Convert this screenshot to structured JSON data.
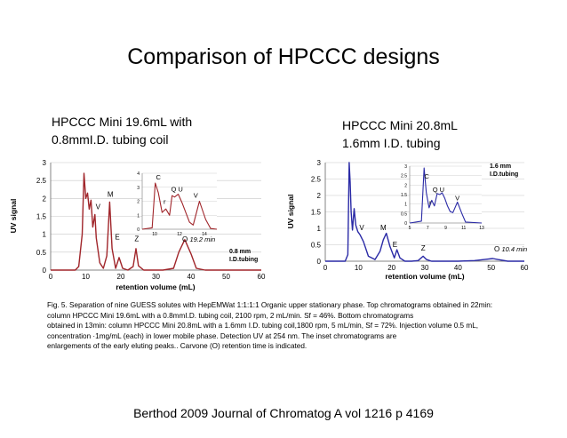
{
  "slide": {
    "title": "Comparison of HPCCC designs",
    "left_subtitle_line1": "HPCCC Mini 19.6mL with",
    "left_subtitle_line2": "0.8mmI.D. tubing coil",
    "right_subtitle_line1": "HPCCC Mini 20.8mL",
    "right_subtitle_line2": "1.6mm I.D. tubing",
    "caption_lines": [
      "Fig. 5. Separation of nine GUESS solutes with HepEMWat 1:1:1:1 Organic upper stationary phase. Top chromatograms obtained in 22min:",
      "column HPCCC Mini 19.6mL with a 0.8mmI.D. tubing coil, 2100 rpm, 2 mL/min. Sf = 46%. Bottom chromatograms",
      "obtained in 13min: column HPCCC Mini 20.8mL with a 1.6mm I.D. tubing coil,1800 rpm, 5 mL/min, Sf = 72%. Injection volume 0.5 mL,",
      "concentration ·1mg/mL (each) in lower mobile phase. Detection UV at 254 nm. The inset chromatograms are",
      "enlargements of the early eluting peaks.. Carvone (O) retention time is indicated."
    ],
    "citation": "Berthod 2009 Journal of Chromatog A vol 1216 p 4169"
  },
  "chart_data": [
    {
      "type": "line",
      "xlabel": "retention volume (mL)",
      "ylabel": "UV signal",
      "xlim": [
        0,
        60
      ],
      "ylim": [
        0,
        3
      ],
      "x_ticks": [
        "0",
        "10",
        "20",
        "30",
        "40",
        "50",
        "60"
      ],
      "y_ticks": [
        "0",
        "0.5",
        "1",
        "1.5",
        "2",
        "2.5",
        "3"
      ],
      "grid": true,
      "color": "#a0252a",
      "annotation": "0.8 mm I.D.tubing",
      "carvone_label": "O 19.2 min",
      "series": [
        {
          "x": [
            0,
            7,
            8,
            9,
            9.5,
            10,
            10.5,
            11,
            11.5,
            12,
            12.6,
            13,
            14,
            15,
            16,
            16.8,
            17.5,
            18.5,
            19.5,
            20.5,
            22,
            23.5,
            24.3,
            25,
            26.5,
            28,
            32,
            35,
            36.5,
            38.2,
            40,
            41.5,
            44,
            60
          ],
          "y": [
            0,
            0,
            0.1,
            1.0,
            2.7,
            2.0,
            2.15,
            1.7,
            1.95,
            1.2,
            1.55,
            0.9,
            0.2,
            0.05,
            0.4,
            1.9,
            0.6,
            0.05,
            0.35,
            0.05,
            0,
            0.1,
            0.6,
            0.12,
            0,
            0,
            0,
            0.05,
            0.5,
            0.85,
            0.45,
            0.05,
            0,
            0
          ]
        }
      ],
      "peak_labels": [
        {
          "label": "V",
          "x": 13.5,
          "y": 1.7
        },
        {
          "label": "M",
          "x": 17,
          "y": 2.05
        },
        {
          "label": "E",
          "x": 19,
          "y": 0.85
        },
        {
          "label": "Z",
          "x": 24.5,
          "y": 0.8
        }
      ],
      "inset": {
        "xlim": [
          9,
          15
        ],
        "ylim": [
          0,
          4
        ],
        "x_ticks": [
          "10",
          "12",
          "14"
        ],
        "y_ticks": [
          "0",
          "1",
          "2",
          "3",
          "4"
        ],
        "x": [
          9,
          9.8,
          10.05,
          10.3,
          10.6,
          10.9,
          11.2,
          11.4,
          11.6,
          11.9,
          12.2,
          12.5,
          12.8,
          13.1,
          13.6,
          14.1,
          14.5,
          15
        ],
        "y": [
          0,
          0.1,
          3.3,
          2.6,
          1.2,
          1.45,
          1.0,
          2.4,
          2.3,
          2.5,
          1.9,
          1.2,
          0.5,
          0.3,
          2.0,
          0.7,
          0.05,
          0
        ],
        "labels": [
          {
            "label": "C",
            "x": 10.3,
            "y": 3.55
          },
          {
            "label": "r",
            "x": 10.8,
            "y": 1.8
          },
          {
            "label": "Q U",
            "x": 11.8,
            "y": 2.7
          },
          {
            "label": "V",
            "x": 13.3,
            "y": 2.25
          }
        ]
      }
    },
    {
      "type": "line",
      "xlabel": "retention volume (mL)",
      "ylabel": "UV signal",
      "xlim": [
        0,
        60
      ],
      "ylim": [
        0,
        3
      ],
      "x_ticks": [
        "0",
        "10",
        "20",
        "30",
        "40",
        "50",
        "60"
      ],
      "y_ticks": [
        "0",
        "0.5",
        "1",
        "1.5",
        "2",
        "2.5",
        "3"
      ],
      "grid": true,
      "color": "#2a2aa6",
      "annotation": "1.6 mm I.D.tubing",
      "carvone_label": "O 10.4 min",
      "series": [
        {
          "x": [
            0,
            6,
            6.8,
            7.2,
            7.5,
            7.8,
            8.2,
            8.7,
            9.2,
            9.8,
            10.5,
            11.5,
            13,
            15,
            16.5,
            17.5,
            18.4,
            19.5,
            20.8,
            21.6,
            22.5,
            24,
            26,
            28,
            29.5,
            30.5,
            32,
            35,
            40,
            45,
            48,
            50.5,
            52,
            55,
            60
          ],
          "y": [
            0,
            0,
            0.2,
            3.0,
            2.4,
            1.5,
            0.95,
            1.6,
            1.1,
            0.9,
            0.8,
            0.6,
            0.15,
            0.05,
            0.3,
            0.65,
            0.85,
            0.45,
            0.1,
            0.35,
            0.1,
            0,
            0,
            0.02,
            0.15,
            0.05,
            0,
            0,
            0,
            0.02,
            0.05,
            0.08,
            0.05,
            0,
            0
          ]
        }
      ],
      "peak_labels": [
        {
          "label": "V",
          "x": 11,
          "y": 0.95
        },
        {
          "label": "M",
          "x": 17.5,
          "y": 0.95
        },
        {
          "label": "E",
          "x": 21,
          "y": 0.43
        },
        {
          "label": "Z",
          "x": 29.5,
          "y": 0.33
        }
      ],
      "inset": {
        "xlim": [
          5,
          13
        ],
        "ylim": [
          0,
          3
        ],
        "x_ticks": [
          "5",
          "7",
          "9",
          "11",
          "13"
        ],
        "y_ticks": [
          "0",
          "0.5",
          "1",
          "1.5",
          "2",
          "2.5",
          "3"
        ],
        "x": [
          5,
          6.3,
          6.6,
          6.85,
          7.15,
          7.45,
          7.75,
          8.05,
          8.35,
          8.6,
          8.9,
          9.2,
          9.5,
          9.8,
          10.3,
          10.8,
          11.2,
          13
        ],
        "y": [
          0,
          0.1,
          2.9,
          1.6,
          0.8,
          1.2,
          0.9,
          1.55,
          1.5,
          1.6,
          1.3,
          0.9,
          0.6,
          0.55,
          1.1,
          0.5,
          0.05,
          0
        ],
        "labels": [
          {
            "label": "C",
            "x": 6.9,
            "y": 2.35
          },
          {
            "label": "r",
            "x": 7.3,
            "y": 0.95
          },
          {
            "label": "Q U",
            "x": 8.2,
            "y": 1.65
          },
          {
            "label": "V",
            "x": 10.3,
            "y": 1.2
          }
        ]
      }
    }
  ]
}
